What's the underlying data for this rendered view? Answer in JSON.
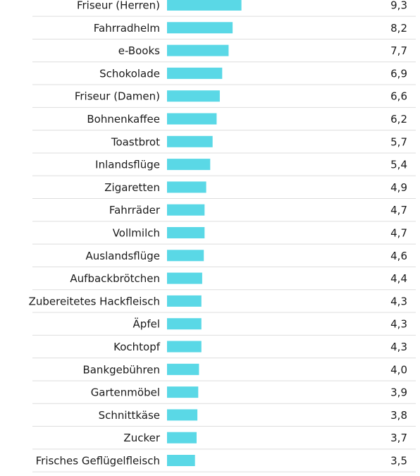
{
  "chart_data": {
    "type": "bar",
    "orientation": "horizontal",
    "bar_color": "#5ad8e6",
    "categories": [
      "Friseur (Herren)",
      "Fahrradhelm",
      "e-Books",
      "Schokolade",
      "Friseur (Damen)",
      "Bohnenkaffee",
      "Toastbrot",
      "Inlandsflüge",
      "Zigaretten",
      "Fahrräder",
      "Vollmilch",
      "Auslandsflüge",
      "Aufbackbrötchen",
      "Zubereitetes Hackfleisch",
      "Äpfel",
      "Kochtopf",
      "Bankgebühren",
      "Gartenmöbel",
      "Schnittkäse",
      "Zucker",
      "Frisches Geflügelfleisch"
    ],
    "values": [
      9.3,
      8.2,
      7.7,
      6.9,
      6.6,
      6.2,
      5.7,
      5.4,
      4.9,
      4.7,
      4.7,
      4.6,
      4.4,
      4.3,
      4.3,
      4.3,
      4.0,
      3.9,
      3.8,
      3.7,
      3.5
    ],
    "value_labels": [
      "9,3",
      "8,2",
      "7,7",
      "6,9",
      "6,6",
      "6,2",
      "5,7",
      "5,4",
      "4,9",
      "4,7",
      "4,7",
      "4,6",
      "4,4",
      "4,3",
      "4,3",
      "4,3",
      "4,0",
      "3,9",
      "3,8",
      "3,7",
      "3,5"
    ],
    "title": "",
    "xlabel": "",
    "ylabel": "",
    "grid": false,
    "legend": "none"
  }
}
